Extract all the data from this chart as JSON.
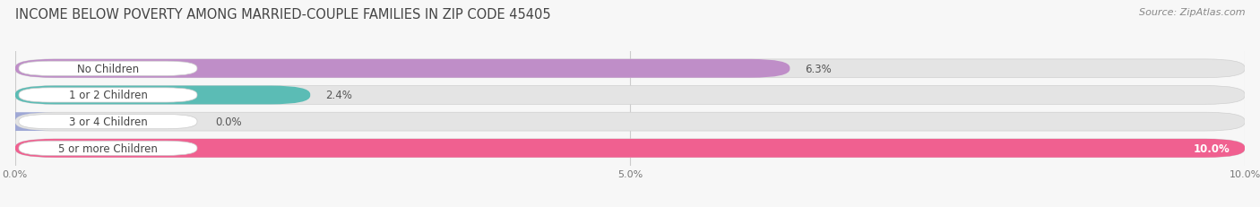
{
  "title": "INCOME BELOW POVERTY AMONG MARRIED-COUPLE FAMILIES IN ZIP CODE 45405",
  "source": "Source: ZipAtlas.com",
  "categories": [
    "No Children",
    "1 or 2 Children",
    "3 or 4 Children",
    "5 or more Children"
  ],
  "values": [
    6.3,
    2.4,
    0.0,
    10.0
  ],
  "bar_colors": [
    "#bf8ec8",
    "#5bbcb5",
    "#9fa8d5",
    "#f06090"
  ],
  "xlim": [
    0,
    10.0
  ],
  "xticks": [
    0.0,
    5.0,
    10.0
  ],
  "xticklabels": [
    "0.0%",
    "5.0%",
    "10.0%"
  ],
  "bg_color": "#f7f7f7",
  "bar_bg_color": "#e4e4e4",
  "title_fontsize": 10.5,
  "source_fontsize": 8,
  "label_fontsize": 8.5,
  "value_fontsize": 8.5
}
